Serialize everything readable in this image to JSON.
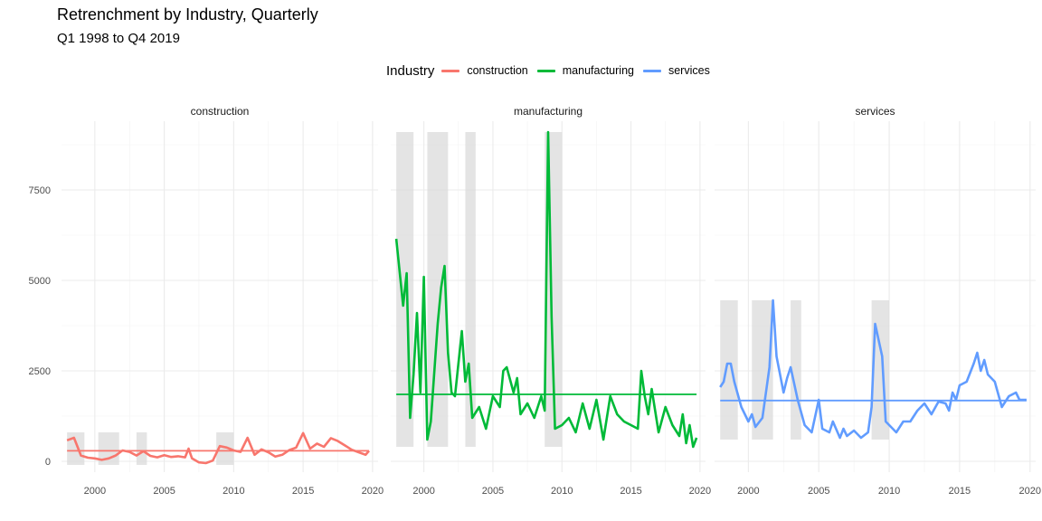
{
  "title": "Retrenchment by Industry, Quarterly",
  "subtitle": "Q1 1998 to Q4 2019",
  "legend": {
    "title": "Industry",
    "items": [
      {
        "label": "construction",
        "color": "#F8766D"
      },
      {
        "label": "manufacturing",
        "color": "#00BA38"
      },
      {
        "label": "services",
        "color": "#619CFF"
      }
    ]
  },
  "chart_data": {
    "type": "line",
    "facets": [
      "construction",
      "manufacturing",
      "services"
    ],
    "x_ticks": [
      2000,
      2005,
      2010,
      2015,
      2020
    ],
    "y_ticks": [
      0,
      2500,
      5000,
      7500
    ],
    "xlim": [
      1997.6,
      2020.4
    ],
    "ylim": [
      -300,
      9400
    ],
    "grid": true,
    "legend_position": "top",
    "shaded_periods": [
      [
        1998.0,
        1999.25
      ],
      [
        2000.25,
        2001.75
      ],
      [
        2003.0,
        2003.75
      ],
      [
        2008.75,
        2010.0
      ]
    ],
    "series": [
      {
        "name": "construction",
        "color": "#F8766D",
        "mean": 290,
        "shade_range": [
          -100,
          800
        ],
        "points": [
          [
            1998.0,
            580
          ],
          [
            1998.5,
            650
          ],
          [
            1999.0,
            160
          ],
          [
            1999.5,
            100
          ],
          [
            2000.0,
            80
          ],
          [
            2000.5,
            40
          ],
          [
            2001.0,
            80
          ],
          [
            2001.5,
            160
          ],
          [
            2002.0,
            300
          ],
          [
            2002.5,
            260
          ],
          [
            2003.0,
            160
          ],
          [
            2003.5,
            280
          ],
          [
            2004.0,
            150
          ],
          [
            2004.5,
            110
          ],
          [
            2005.0,
            170
          ],
          [
            2005.5,
            120
          ],
          [
            2006.0,
            140
          ],
          [
            2006.5,
            110
          ],
          [
            2006.75,
            350
          ],
          [
            2007.0,
            80
          ],
          [
            2007.5,
            -30
          ],
          [
            2008.0,
            -50
          ],
          [
            2008.5,
            20
          ],
          [
            2009.0,
            420
          ],
          [
            2009.5,
            380
          ],
          [
            2010.0,
            300
          ],
          [
            2010.5,
            260
          ],
          [
            2011.0,
            650
          ],
          [
            2011.5,
            180
          ],
          [
            2012.0,
            330
          ],
          [
            2012.5,
            250
          ],
          [
            2013.0,
            130
          ],
          [
            2013.5,
            180
          ],
          [
            2014.0,
            310
          ],
          [
            2014.5,
            380
          ],
          [
            2015.0,
            780
          ],
          [
            2015.5,
            350
          ],
          [
            2016.0,
            490
          ],
          [
            2016.5,
            400
          ],
          [
            2017.0,
            640
          ],
          [
            2017.5,
            560
          ],
          [
            2018.0,
            440
          ],
          [
            2018.5,
            320
          ],
          [
            2019.0,
            250
          ],
          [
            2019.5,
            180
          ],
          [
            2019.75,
            290
          ]
        ]
      },
      {
        "name": "manufacturing",
        "color": "#00BA38",
        "mean": 1850,
        "shade_range": [
          400,
          9100
        ],
        "points": [
          [
            1998.0,
            6150
          ],
          [
            1998.5,
            4300
          ],
          [
            1998.75,
            5200
          ],
          [
            1999.0,
            1200
          ],
          [
            1999.25,
            2400
          ],
          [
            1999.5,
            4100
          ],
          [
            1999.75,
            1900
          ],
          [
            2000.0,
            5100
          ],
          [
            2000.25,
            600
          ],
          [
            2000.5,
            1100
          ],
          [
            2001.0,
            3800
          ],
          [
            2001.25,
            4800
          ],
          [
            2001.5,
            5400
          ],
          [
            2001.75,
            3000
          ],
          [
            2002.0,
            1900
          ],
          [
            2002.25,
            1800
          ],
          [
            2002.75,
            3600
          ],
          [
            2003.0,
            2200
          ],
          [
            2003.25,
            2700
          ],
          [
            2003.5,
            1200
          ],
          [
            2004.0,
            1500
          ],
          [
            2004.5,
            900
          ],
          [
            2005.0,
            1800
          ],
          [
            2005.5,
            1500
          ],
          [
            2005.75,
            2500
          ],
          [
            2006.0,
            2600
          ],
          [
            2006.5,
            1900
          ],
          [
            2006.75,
            2300
          ],
          [
            2007.0,
            1300
          ],
          [
            2007.5,
            1600
          ],
          [
            2008.0,
            1200
          ],
          [
            2008.5,
            1800
          ],
          [
            2008.75,
            1400
          ],
          [
            2009.0,
            9100
          ],
          [
            2009.25,
            4000
          ],
          [
            2009.5,
            900
          ],
          [
            2010.0,
            1000
          ],
          [
            2010.5,
            1200
          ],
          [
            2011.0,
            800
          ],
          [
            2011.5,
            1600
          ],
          [
            2012.0,
            900
          ],
          [
            2012.5,
            1700
          ],
          [
            2013.0,
            600
          ],
          [
            2013.5,
            1800
          ],
          [
            2014.0,
            1300
          ],
          [
            2014.5,
            1100
          ],
          [
            2015.0,
            1000
          ],
          [
            2015.5,
            900
          ],
          [
            2015.75,
            2500
          ],
          [
            2016.0,
            1800
          ],
          [
            2016.25,
            1300
          ],
          [
            2016.5,
            2000
          ],
          [
            2017.0,
            800
          ],
          [
            2017.5,
            1500
          ],
          [
            2018.0,
            1000
          ],
          [
            2018.5,
            700
          ],
          [
            2018.75,
            1300
          ],
          [
            2019.0,
            500
          ],
          [
            2019.25,
            1000
          ],
          [
            2019.5,
            400
          ],
          [
            2019.75,
            650
          ]
        ]
      },
      {
        "name": "services",
        "color": "#619CFF",
        "mean": 1680,
        "shade_range": [
          600,
          4450
        ],
        "points": [
          [
            1998.0,
            2050
          ],
          [
            1998.25,
            2200
          ],
          [
            1998.5,
            2700
          ],
          [
            1998.75,
            2700
          ],
          [
            1999.0,
            2200
          ],
          [
            1999.5,
            1500
          ],
          [
            2000.0,
            1100
          ],
          [
            2000.25,
            1300
          ],
          [
            2000.5,
            950
          ],
          [
            2001.0,
            1200
          ],
          [
            2001.5,
            2600
          ],
          [
            2001.75,
            4450
          ],
          [
            2002.0,
            2900
          ],
          [
            2002.5,
            1900
          ],
          [
            2002.75,
            2300
          ],
          [
            2003.0,
            2600
          ],
          [
            2003.5,
            1700
          ],
          [
            2004.0,
            1000
          ],
          [
            2004.5,
            800
          ],
          [
            2005.0,
            1700
          ],
          [
            2005.25,
            900
          ],
          [
            2005.75,
            800
          ],
          [
            2006.0,
            1100
          ],
          [
            2006.5,
            650
          ],
          [
            2006.75,
            900
          ],
          [
            2007.0,
            700
          ],
          [
            2007.5,
            850
          ],
          [
            2008.0,
            650
          ],
          [
            2008.5,
            800
          ],
          [
            2008.75,
            1500
          ],
          [
            2009.0,
            3800
          ],
          [
            2009.5,
            2900
          ],
          [
            2009.75,
            1100
          ],
          [
            2010.0,
            1000
          ],
          [
            2010.5,
            800
          ],
          [
            2011.0,
            1100
          ],
          [
            2011.5,
            1100
          ],
          [
            2012.0,
            1400
          ],
          [
            2012.5,
            1600
          ],
          [
            2013.0,
            1300
          ],
          [
            2013.5,
            1650
          ],
          [
            2014.0,
            1600
          ],
          [
            2014.25,
            1400
          ],
          [
            2014.5,
            1900
          ],
          [
            2014.75,
            1700
          ],
          [
            2015.0,
            2100
          ],
          [
            2015.5,
            2200
          ],
          [
            2016.0,
            2700
          ],
          [
            2016.25,
            3000
          ],
          [
            2016.5,
            2500
          ],
          [
            2016.75,
            2800
          ],
          [
            2017.0,
            2400
          ],
          [
            2017.5,
            2200
          ],
          [
            2018.0,
            1500
          ],
          [
            2018.5,
            1800
          ],
          [
            2019.0,
            1900
          ],
          [
            2019.25,
            1700
          ],
          [
            2019.5,
            1700
          ],
          [
            2019.75,
            1700
          ]
        ]
      }
    ]
  }
}
